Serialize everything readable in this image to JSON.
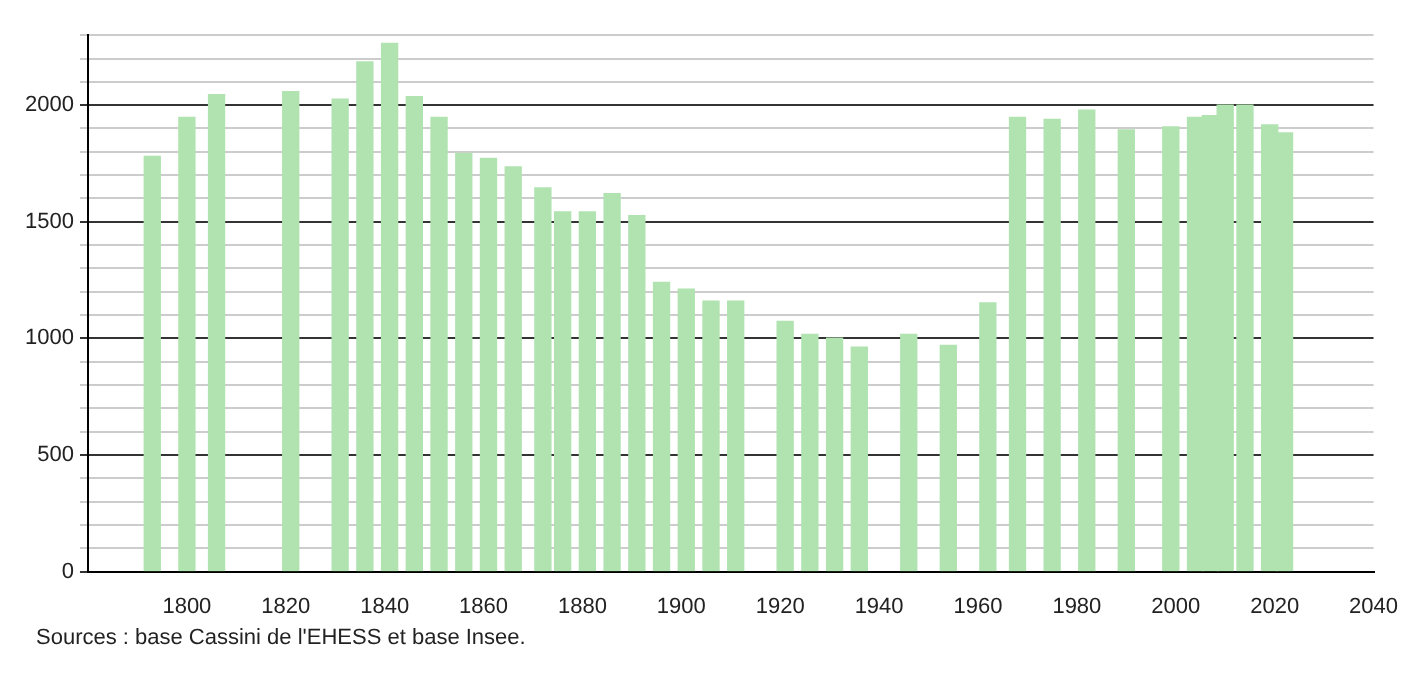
{
  "chart_data": {
    "type": "bar",
    "x": [
      1793,
      1800,
      1806,
      1821,
      1831,
      1836,
      1841,
      1846,
      1851,
      1856,
      1861,
      1866,
      1872,
      1876,
      1881,
      1886,
      1891,
      1896,
      1901,
      1906,
      1911,
      1921,
      1926,
      1931,
      1936,
      1946,
      1954,
      1962,
      1968,
      1975,
      1982,
      1990,
      1999,
      2004,
      2007,
      2010,
      2014,
      2019,
      2022
    ],
    "values": [
      1780,
      1947,
      2045,
      2058,
      2026,
      2185,
      2265,
      2037,
      1947,
      1793,
      1772,
      1735,
      1645,
      1542,
      1542,
      1621,
      1526,
      1240,
      1211,
      1160,
      1160,
      1073,
      1017,
      1001,
      962,
      1017,
      970,
      1152,
      1947,
      1939,
      1979,
      1894,
      1907,
      1947,
      1955,
      2000,
      2000,
      1915,
      1881
    ],
    "color": "#b0e3b0",
    "xlim": [
      1780,
      2040
    ],
    "xticks": [
      1800,
      1820,
      1840,
      1860,
      1880,
      1900,
      1920,
      1940,
      1960,
      1980,
      2000,
      2020,
      2040
    ],
    "ylim": [
      0,
      2300
    ],
    "yticks": [
      0,
      {
        "value": 100,
        "label": null
      },
      {
        "value": 200,
        "label": null
      },
      {
        "value": 300,
        "label": null
      },
      {
        "value": 400,
        "label": null
      },
      500,
      {
        "value": 600,
        "label": null
      },
      {
        "value": 700,
        "label": null
      },
      {
        "value": 800,
        "label": null
      },
      {
        "value": 900,
        "label": null
      },
      1000,
      {
        "value": 1100,
        "label": null
      },
      {
        "value": 1200,
        "label": null
      },
      {
        "value": 1300,
        "label": null
      },
      {
        "value": 1400,
        "label": null
      },
      1500,
      {
        "value": 1600,
        "label": null
      },
      {
        "value": 1700,
        "label": null
      },
      {
        "value": 1800,
        "label": null
      },
      {
        "value": 1900,
        "label": null
      },
      2000,
      {
        "value": 2100,
        "label": null
      },
      {
        "value": 2200,
        "label": null
      },
      {
        "value": 2300,
        "label": null
      }
    ],
    "grid": "y",
    "annotations": [
      "Sources : base Cassini de l'EHESS et base Insee."
    ]
  }
}
